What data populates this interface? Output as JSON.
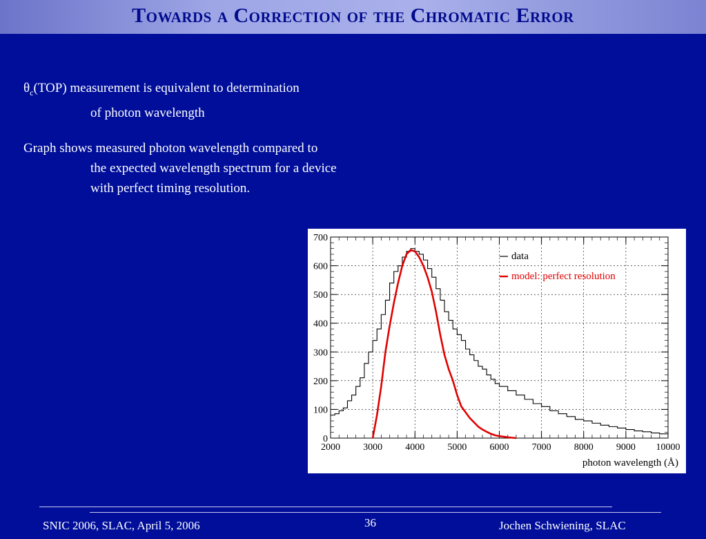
{
  "slide": {
    "title": "Towards a Correction of the Chromatic Error",
    "para1": {
      "theta": "θ",
      "sub": "c",
      "line1_rest": "(TOP) measurement is equivalent to determination",
      "line2": "of photon wavelength"
    },
    "para2": {
      "line1": "Graph shows measured photon wavelength compared to",
      "line2": "the expected wavelength spectrum for a device",
      "line3": "with perfect timing resolution."
    }
  },
  "footer": {
    "left": "SNIC 2006, SLAC, April 5, 2006",
    "page": "36",
    "right": "Jochen Schwiening, SLAC"
  },
  "colors": {
    "background": "#000e9a",
    "title_text": "#000a8c",
    "model_line": "#e00000",
    "data_line": "#000000"
  },
  "chart_data": {
    "type": "line",
    "xlabel": "photon wavelength (Å)",
    "ylabel": "",
    "xlim": [
      2000,
      10000
    ],
    "ylim": [
      0,
      700
    ],
    "x_ticks": [
      "2000",
      "3000",
      "4000",
      "5000",
      "6000",
      "7000",
      "8000",
      "9000",
      "10000"
    ],
    "y_ticks": [
      "0",
      "100",
      "200",
      "300",
      "400",
      "500",
      "600",
      "700"
    ],
    "legend_position": "top-right",
    "grid": true,
    "series": [
      {
        "name": "data",
        "style": "step",
        "x": [
          2000,
          2100,
          2200,
          2300,
          2400,
          2500,
          2600,
          2700,
          2800,
          2900,
          3000,
          3100,
          3200,
          3300,
          3400,
          3500,
          3600,
          3700,
          3800,
          3900,
          4000,
          4100,
          4200,
          4300,
          4400,
          4500,
          4600,
          4700,
          4800,
          4900,
          5000,
          5100,
          5200,
          5300,
          5400,
          5500,
          5600,
          5700,
          5800,
          5900,
          6000,
          6200,
          6400,
          6600,
          6800,
          7000,
          7200,
          7400,
          7600,
          7800,
          8000,
          8200,
          8400,
          8600,
          8800,
          9000,
          9200,
          9400,
          9600,
          9800,
          10000
        ],
        "y": [
          80,
          85,
          95,
          105,
          130,
          150,
          180,
          210,
          260,
          300,
          340,
          380,
          430,
          480,
          540,
          580,
          600,
          630,
          650,
          660,
          650,
          640,
          620,
          590,
          560,
          520,
          480,
          440,
          410,
          380,
          360,
          340,
          310,
          290,
          270,
          250,
          240,
          220,
          205,
          190,
          180,
          165,
          150,
          135,
          120,
          110,
          95,
          85,
          75,
          65,
          60,
          52,
          45,
          40,
          35,
          30,
          25,
          22,
          18,
          15,
          12
        ]
      },
      {
        "name": "model: perfect resolution",
        "style": "smooth",
        "x": [
          3000,
          3100,
          3200,
          3300,
          3400,
          3500,
          3600,
          3700,
          3800,
          3900,
          4000,
          4100,
          4200,
          4300,
          4400,
          4500,
          4600,
          4700,
          4800,
          4900,
          5000,
          5100,
          5200,
          5300,
          5400,
          5500,
          5600,
          5700,
          5800,
          5900,
          6000,
          6200,
          6400
        ],
        "y": [
          0,
          80,
          180,
          300,
          390,
          470,
          540,
          600,
          640,
          655,
          650,
          630,
          600,
          560,
          510,
          440,
          360,
          290,
          240,
          200,
          150,
          110,
          90,
          70,
          55,
          40,
          30,
          22,
          15,
          10,
          7,
          3,
          0
        ]
      }
    ]
  }
}
